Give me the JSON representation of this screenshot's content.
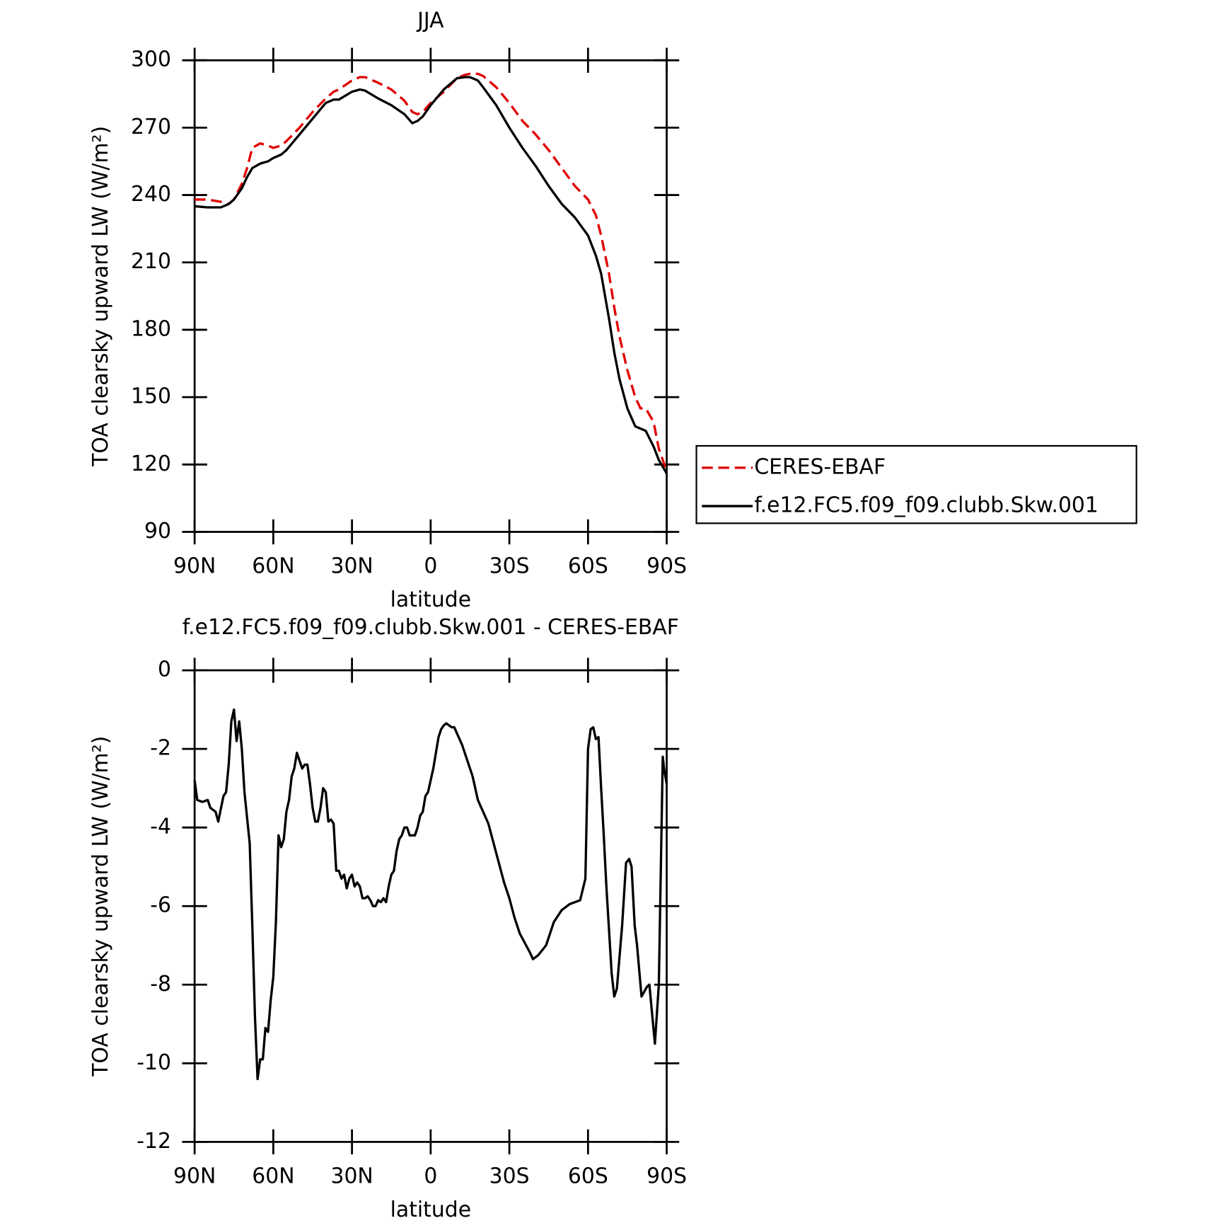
{
  "chart_data": [
    {
      "type": "line",
      "title": "JJA",
      "xlabel": "latitude",
      "ylabel": "TOA clearsky upward LW (W/m²)",
      "x": [
        90,
        85,
        80,
        77,
        75,
        72,
        70,
        68,
        65,
        62,
        60,
        57,
        55,
        50,
        45,
        40,
        37,
        35,
        30,
        27,
        25,
        20,
        15,
        10,
        7,
        5,
        3,
        0,
        -5,
        -10,
        -13,
        -15,
        -18,
        -20,
        -25,
        -30,
        -35,
        -40,
        -45,
        -50,
        -55,
        -60,
        -63,
        -65,
        -68,
        -70,
        -72,
        -75,
        -78,
        -80,
        -82,
        -85,
        -87,
        -90
      ],
      "series": [
        {
          "name": "CERES-EBAF",
          "color": "#e00000",
          "style": "dashed",
          "values": [
            238,
            238,
            237,
            236,
            238,
            245,
            252,
            261,
            263,
            262,
            261,
            262,
            264,
            270,
            277,
            283,
            286,
            287,
            291,
            292.5,
            292.5,
            290,
            287,
            282,
            277,
            276,
            277,
            281,
            286,
            292,
            293.5,
            294,
            294,
            293,
            288,
            281,
            273,
            267,
            260,
            252,
            244,
            238,
            231,
            222,
            205,
            190,
            177,
            162,
            150,
            145,
            145,
            139,
            127,
            117
          ]
        },
        {
          "name": "f.e12.FC5.f09_f09.clubb.Skw.001",
          "color": "#000000",
          "style": "solid",
          "values": [
            235,
            234.5,
            234.5,
            236,
            238,
            243,
            248,
            252,
            254,
            255,
            256.5,
            258,
            260,
            267,
            274,
            281,
            282.5,
            282.5,
            286,
            287,
            286.5,
            283,
            280,
            276,
            272,
            273,
            275,
            280,
            287,
            292,
            292.5,
            292.5,
            291,
            288,
            280,
            270,
            261,
            253,
            244,
            236,
            230,
            222,
            213,
            205,
            185,
            170,
            158,
            145,
            137,
            136,
            135,
            128,
            122,
            116
          ]
        }
      ],
      "xlim": [
        90,
        -90
      ],
      "xticks": [
        {
          "value": 90,
          "label": "90N"
        },
        {
          "value": 60,
          "label": "60N"
        },
        {
          "value": 30,
          "label": "30N"
        },
        0,
        {
          "value": -30,
          "label": "30S"
        },
        {
          "value": -60,
          "label": "60S"
        },
        {
          "value": -90,
          "label": "90S"
        }
      ],
      "ylim": [
        90,
        300
      ],
      "yticks": [
        90,
        120,
        150,
        180,
        210,
        240,
        270,
        300
      ],
      "legend": "right"
    },
    {
      "type": "line",
      "title": "f.e12.FC5.f09_f09.clubb.Skw.001 - CERES-EBAF",
      "xlabel": "latitude",
      "ylabel": "TOA clearsky upward LW (W/m²)",
      "x": [
        90,
        89,
        87,
        85,
        84,
        82,
        81,
        79,
        78,
        77,
        76,
        75,
        74,
        73,
        72,
        71,
        69,
        68,
        67,
        66,
        65,
        64,
        63,
        62,
        61,
        60,
        59,
        58,
        57,
        56,
        55,
        54,
        53,
        52,
        51,
        50,
        49,
        48,
        47,
        46,
        45,
        44,
        43,
        42,
        41,
        40,
        39,
        38,
        37,
        36,
        35,
        34,
        33,
        32,
        31,
        30,
        29,
        28,
        27,
        26,
        25,
        24,
        23,
        22,
        21,
        20,
        19,
        18,
        17,
        16,
        15,
        14,
        13,
        12,
        11,
        10,
        9,
        8,
        7,
        6,
        5,
        4,
        3,
        2,
        1,
        0,
        -1,
        -2,
        -3,
        -4,
        -5,
        -6,
        -7,
        -8,
        -9,
        -10,
        -12,
        -14,
        -16,
        -18,
        -20,
        -22,
        -24,
        -26,
        -28,
        -30,
        -32,
        -34,
        -36,
        -38,
        -39,
        -41,
        -44,
        -47,
        -50,
        -53,
        -55,
        -57,
        -59,
        -60,
        -61,
        -62,
        -63,
        -64,
        -65,
        -66,
        -67,
        -69,
        -70,
        -71,
        -73,
        -74.5,
        -75.7,
        -76.6,
        -77.8,
        -78.7,
        -80.4,
        -82.5,
        -83.4,
        -85.5,
        -87,
        -88.5,
        -89,
        -90
      ],
      "series": [
        {
          "name": "f.e12.FC5.f09_f09.clubb.Skw.001",
          "color": "#000000",
          "style": "solid",
          "values": [
            -2.8,
            -3.3,
            -3.35,
            -3.3,
            -3.5,
            -3.6,
            -3.85,
            -3.2,
            -3.1,
            -2.4,
            -1.3,
            -1.0,
            -1.8,
            -1.3,
            -2.0,
            -3.1,
            -4.4,
            -6.5,
            -8.8,
            -10.4,
            -9.9,
            -9.9,
            -9.1,
            -9.2,
            -8.4,
            -7.8,
            -6.4,
            -4.2,
            -4.5,
            -4.3,
            -3.6,
            -3.3,
            -2.7,
            -2.5,
            -2.1,
            -2.3,
            -2.5,
            -2.4,
            -2.4,
            -2.9,
            -3.5,
            -3.85,
            -3.85,
            -3.5,
            -3.0,
            -3.1,
            -3.85,
            -3.8,
            -3.9,
            -5.1,
            -5.1,
            -5.3,
            -5.2,
            -5.55,
            -5.3,
            -5.2,
            -5.5,
            -5.4,
            -5.5,
            -5.8,
            -5.8,
            -5.75,
            -5.85,
            -6.0,
            -6.0,
            -5.85,
            -5.9,
            -5.8,
            -5.9,
            -5.5,
            -5.2,
            -5.1,
            -4.6,
            -4.3,
            -4.2,
            -4.0,
            -4.0,
            -4.2,
            -4.2,
            -4.2,
            -4.0,
            -3.7,
            -3.6,
            -3.2,
            -3.1,
            -2.8,
            -2.5,
            -2.1,
            -1.7,
            -1.5,
            -1.4,
            -1.35,
            -1.4,
            -1.45,
            -1.45,
            -1.6,
            -1.9,
            -2.3,
            -2.7,
            -3.3,
            -3.6,
            -3.9,
            -4.4,
            -4.9,
            -5.4,
            -5.8,
            -6.3,
            -6.7,
            -6.95,
            -7.2,
            -7.35,
            -7.25,
            -7.0,
            -6.4,
            -6.1,
            -5.95,
            -5.9,
            -5.85,
            -5.3,
            -2.0,
            -1.5,
            -1.45,
            -1.75,
            -1.7,
            -3.0,
            -4.2,
            -5.5,
            -7.7,
            -8.3,
            -8.1,
            -6.5,
            -4.9,
            -4.8,
            -5.0,
            -6.5,
            -7.0,
            -8.3,
            -8.05,
            -8.0,
            -9.5,
            -8.0,
            -2.2,
            -2.5,
            -2.9
          ]
        }
      ],
      "xlim": [
        90,
        -90
      ],
      "xticks": [
        {
          "value": 90,
          "label": "90N"
        },
        {
          "value": 60,
          "label": "60N"
        },
        {
          "value": 30,
          "label": "30N"
        },
        0,
        {
          "value": -30,
          "label": "30S"
        },
        {
          "value": -60,
          "label": "60S"
        },
        {
          "value": -90,
          "label": "90S"
        }
      ],
      "ylim": [
        -12,
        0
      ],
      "yticks": [
        -12,
        -10,
        -8,
        -6,
        -4,
        -2,
        0
      ]
    }
  ]
}
